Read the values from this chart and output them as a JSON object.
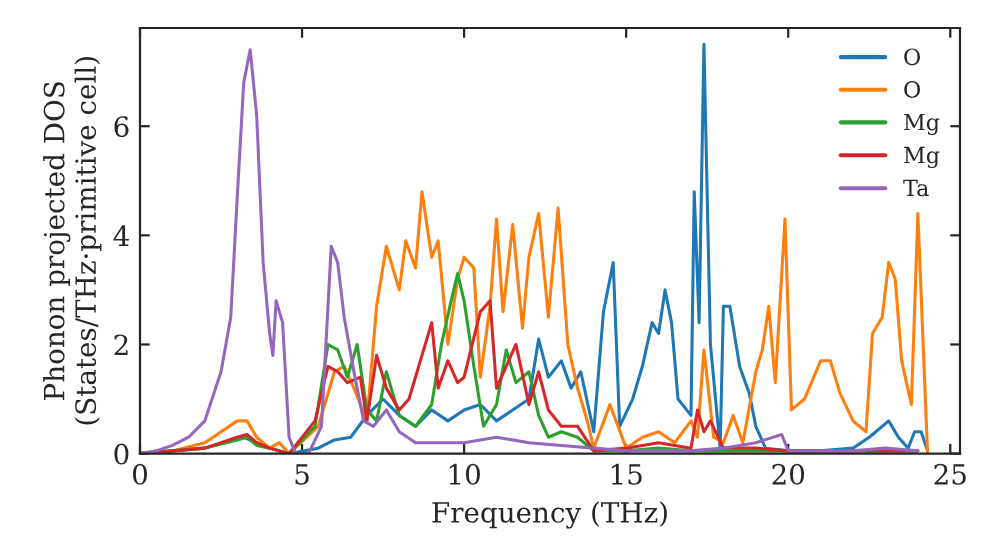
{
  "chart_data": {
    "type": "line",
    "xlabel": "Frequency (THz)",
    "ylabel": "Phonon projected DOS\n(States/THz·primitive cell)",
    "xlim": [
      0,
      25.3
    ],
    "ylim": [
      0,
      7.8
    ],
    "xticks": [
      0,
      5,
      10,
      15,
      20,
      25
    ],
    "yticks": [
      0,
      2,
      4,
      6
    ],
    "grid": false,
    "legend": "top right",
    "line_style": "solid",
    "marker": "none",
    "series": [
      {
        "name": "O",
        "color": "#1f77b4",
        "x": [
          0,
          2,
          3.2,
          4,
          4.6,
          5.5,
          6,
          6.5,
          7,
          7.5,
          8,
          8.5,
          9,
          9.5,
          10,
          10.5,
          11,
          11.5,
          12,
          12.3,
          12.6,
          13,
          13.3,
          13.6,
          14,
          14.3,
          14.6,
          14.8,
          15.2,
          15.5,
          15.8,
          16,
          16.2,
          16.4,
          16.6,
          17,
          17.1,
          17.25,
          17.4,
          17.6,
          17.9,
          18.0,
          18.2,
          18.5,
          18.8,
          19,
          19.3,
          20,
          21,
          22,
          22.5,
          22.9,
          23.1,
          23.4,
          23.7,
          23.9,
          24.1,
          24.3
        ],
        "values": [
          0,
          0.1,
          0.3,
          0.1,
          0,
          0.1,
          0.25,
          0.3,
          0.7,
          1.0,
          0.7,
          0.5,
          0.8,
          0.6,
          0.8,
          0.9,
          0.6,
          0.8,
          1.0,
          2.1,
          1.4,
          1.7,
          1.2,
          1.5,
          0.4,
          2.6,
          3.5,
          0.5,
          1.0,
          1.6,
          2.4,
          2.2,
          3.0,
          2.4,
          1.0,
          0.7,
          4.8,
          2.4,
          7.5,
          2.0,
          0.1,
          2.7,
          2.7,
          1.6,
          1.1,
          0.5,
          0.1,
          0.05,
          0.05,
          0.1,
          0.3,
          0.5,
          0.6,
          0.3,
          0.1,
          0.4,
          0.4,
          0.05
        ]
      },
      {
        "name": "O",
        "color": "#ff7f0e",
        "x": [
          0,
          1,
          2,
          3,
          3.3,
          3.6,
          4,
          4.3,
          4.6,
          5.5,
          6,
          6.3,
          6.6,
          7,
          7.3,
          7.6,
          8,
          8.2,
          8.5,
          8.7,
          9,
          9.2,
          9.5,
          9.8,
          10,
          10.3,
          10.5,
          10.8,
          11,
          11.2,
          11.5,
          11.8,
          12,
          12.3,
          12.6,
          12.9,
          13.2,
          13.5,
          13.8,
          14,
          14.5,
          15,
          15.5,
          16,
          16.5,
          17,
          17.2,
          17.4,
          17.7,
          18,
          18.3,
          18.6,
          19,
          19.2,
          19.4,
          19.6,
          19.9,
          20.1,
          20.5,
          21,
          21.3,
          21.6,
          22,
          22.4,
          22.6,
          22.9,
          23.1,
          23.3,
          23.5,
          23.8,
          24.0,
          24.3
        ],
        "values": [
          0,
          0.05,
          0.2,
          0.6,
          0.6,
          0.3,
          0.1,
          0.2,
          0,
          0.5,
          1.5,
          1.6,
          1.2,
          0.6,
          2.7,
          3.8,
          3.0,
          3.9,
          3.4,
          4.8,
          3.6,
          3.9,
          2.0,
          3.2,
          3.6,
          3.4,
          1.4,
          2.7,
          4.3,
          2.6,
          4.2,
          2.3,
          3.6,
          4.4,
          2.5,
          4.5,
          2.0,
          1.2,
          0.6,
          0.1,
          0.9,
          0.1,
          0.3,
          0.4,
          0.2,
          0.6,
          0.3,
          1.9,
          0.3,
          0.2,
          0.7,
          0.2,
          1.5,
          1.9,
          2.7,
          1.3,
          4.3,
          0.8,
          1.0,
          1.7,
          1.7,
          1.1,
          0.6,
          0.4,
          2.2,
          2.5,
          3.5,
          3.2,
          1.7,
          0.9,
          4.4,
          0
        ]
      },
      {
        "name": "Mg",
        "color": "#2ca02c",
        "x": [
          0,
          2,
          3,
          3.3,
          3.6,
          4,
          4.6,
          5.4,
          5.8,
          6.1,
          6.4,
          6.7,
          7,
          7.3,
          7.6,
          8,
          8.5,
          9,
          9.3,
          9.6,
          9.8,
          10,
          10.3,
          10.6,
          11,
          11.3,
          11.6,
          12,
          12.3,
          12.6,
          13,
          13.5,
          14,
          15,
          16,
          17,
          18,
          20,
          22,
          24
        ],
        "values": [
          0,
          0.1,
          0.25,
          0.3,
          0.15,
          0.1,
          0,
          0.5,
          2.0,
          1.9,
          1.4,
          2.0,
          0.8,
          0.6,
          1.5,
          0.7,
          0.5,
          0.9,
          2.0,
          2.8,
          3.3,
          2.8,
          1.6,
          0.5,
          0.9,
          1.9,
          1.3,
          1.5,
          0.7,
          0.3,
          0.4,
          0.3,
          0.05,
          0.05,
          0.1,
          0.05,
          0.05,
          0.05,
          0.05,
          0.05
        ]
      },
      {
        "name": "Mg",
        "color": "#d62728",
        "x": [
          0,
          2,
          3,
          3.3,
          3.6,
          4,
          4.6,
          5.4,
          5.8,
          6.1,
          6.4,
          6.8,
          7,
          7.3,
          7.6,
          8,
          8.3,
          8.7,
          9,
          9.2,
          9.5,
          9.8,
          10,
          10.5,
          10.8,
          11,
          11.3,
          11.6,
          12,
          12.3,
          12.6,
          13,
          13.5,
          14,
          15,
          16,
          17,
          17.2,
          17.4,
          17.6,
          18,
          19,
          20,
          22,
          24
        ],
        "values": [
          0,
          0.1,
          0.3,
          0.35,
          0.2,
          0.1,
          0,
          0.6,
          1.6,
          1.5,
          1.3,
          1.4,
          0.6,
          1.8,
          1.2,
          0.8,
          1.0,
          1.8,
          2.4,
          1.2,
          1.7,
          1.3,
          1.4,
          2.6,
          2.8,
          1.2,
          1.6,
          2.0,
          0.9,
          1.5,
          0.8,
          0.5,
          0.5,
          0.05,
          0.1,
          0.2,
          0.1,
          0.8,
          0.4,
          0.6,
          0.1,
          0.1,
          0.05,
          0.05,
          0.05
        ]
      },
      {
        "name": "Ta",
        "color": "#9467bd",
        "x": [
          0,
          0.5,
          1,
          1.5,
          2,
          2.5,
          2.8,
          3,
          3.2,
          3.4,
          3.6,
          3.8,
          4,
          4.1,
          4.2,
          4.4,
          4.6,
          4.8,
          5.2,
          5.6,
          5.9,
          6.1,
          6.3,
          6.6,
          6.9,
          7.2,
          7.6,
          8,
          8.5,
          9,
          10,
          11,
          12,
          13,
          14,
          15,
          16,
          17,
          18,
          19,
          19.8,
          20,
          21,
          22,
          23,
          24
        ],
        "values": [
          0,
          0.05,
          0.15,
          0.3,
          0.6,
          1.5,
          2.5,
          4.7,
          6.8,
          7.4,
          6.2,
          3.5,
          2.2,
          1.8,
          2.8,
          2.4,
          0.3,
          0,
          0,
          0.5,
          3.8,
          3.5,
          2.5,
          1.5,
          0.6,
          0.5,
          0.8,
          0.4,
          0.2,
          0.2,
          0.2,
          0.3,
          0.2,
          0.15,
          0.1,
          0.05,
          0.05,
          0.05,
          0.1,
          0.2,
          0.35,
          0.05,
          0.05,
          0.05,
          0.1,
          0.05
        ]
      }
    ]
  }
}
